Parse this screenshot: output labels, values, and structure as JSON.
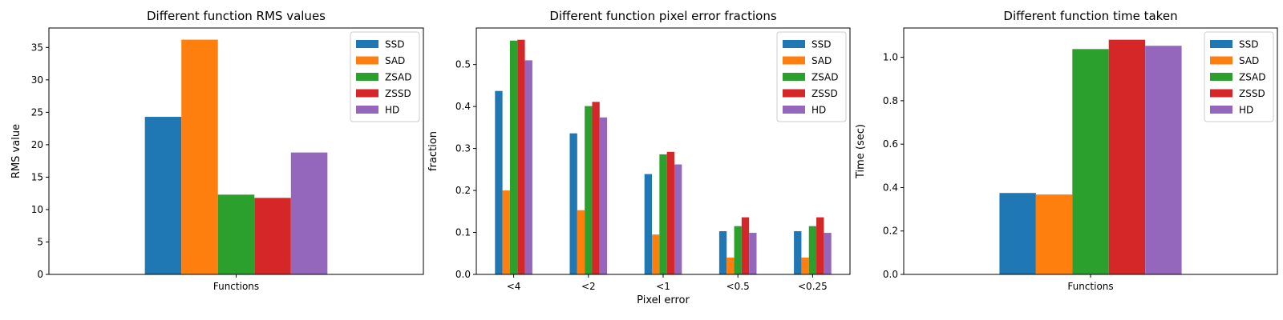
{
  "chart_data": [
    {
      "type": "bar",
      "title": "Different function RMS values",
      "xlabel": "",
      "ylabel": "RMS value",
      "categories": [
        "Functions"
      ],
      "ylim": [
        0,
        38
      ],
      "yticks": [
        0,
        5,
        10,
        15,
        20,
        25,
        30,
        35
      ],
      "legend_position": "top-right",
      "series": [
        {
          "name": "SSD",
          "color": "#1f77b4",
          "values": [
            24.3
          ]
        },
        {
          "name": "SAD",
          "color": "#ff7f0e",
          "values": [
            36.2
          ]
        },
        {
          "name": "ZSAD",
          "color": "#2ca02c",
          "values": [
            12.3
          ]
        },
        {
          "name": "ZSSD",
          "color": "#d62728",
          "values": [
            11.8
          ]
        },
        {
          "name": "HD",
          "color": "#9467bd",
          "values": [
            18.8
          ]
        }
      ]
    },
    {
      "type": "bar",
      "title": "Different function pixel error fractions",
      "xlabel": "Pixel error",
      "ylabel": "fraction",
      "categories": [
        "<4",
        "<2",
        "<1",
        "<0.5",
        "<0.25"
      ],
      "ylim": [
        0,
        0.587
      ],
      "yticks": [
        0.0,
        0.1,
        0.2,
        0.3,
        0.4,
        0.5
      ],
      "legend_position": "top-right",
      "series": [
        {
          "name": "SSD",
          "color": "#1f77b4",
          "values": [
            0.437,
            0.336,
            0.239,
            0.103,
            0.103
          ]
        },
        {
          "name": "SAD",
          "color": "#ff7f0e",
          "values": [
            0.2,
            0.153,
            0.095,
            0.04,
            0.04
          ]
        },
        {
          "name": "ZSAD",
          "color": "#2ca02c",
          "values": [
            0.557,
            0.401,
            0.286,
            0.115,
            0.115
          ]
        },
        {
          "name": "ZSSD",
          "color": "#d62728",
          "values": [
            0.559,
            0.411,
            0.292,
            0.136,
            0.136
          ]
        },
        {
          "name": "HD",
          "color": "#9467bd",
          "values": [
            0.51,
            0.374,
            0.262,
            0.099,
            0.099
          ]
        }
      ]
    },
    {
      "type": "bar",
      "title": "Different function time taken",
      "xlabel": "",
      "ylabel": "Time (sec)",
      "categories": [
        "Functions"
      ],
      "ylim": [
        0,
        1.135
      ],
      "yticks": [
        0.0,
        0.2,
        0.4,
        0.6,
        0.8,
        1.0
      ],
      "legend_position": "top-right",
      "series": [
        {
          "name": "SSD",
          "color": "#1f77b4",
          "values": [
            0.375
          ]
        },
        {
          "name": "SAD",
          "color": "#ff7f0e",
          "values": [
            0.368
          ]
        },
        {
          "name": "ZSAD",
          "color": "#2ca02c",
          "values": [
            1.038
          ]
        },
        {
          "name": "ZSSD",
          "color": "#d62728",
          "values": [
            1.081
          ]
        },
        {
          "name": "HD",
          "color": "#9467bd",
          "values": [
            1.053
          ]
        }
      ]
    }
  ]
}
